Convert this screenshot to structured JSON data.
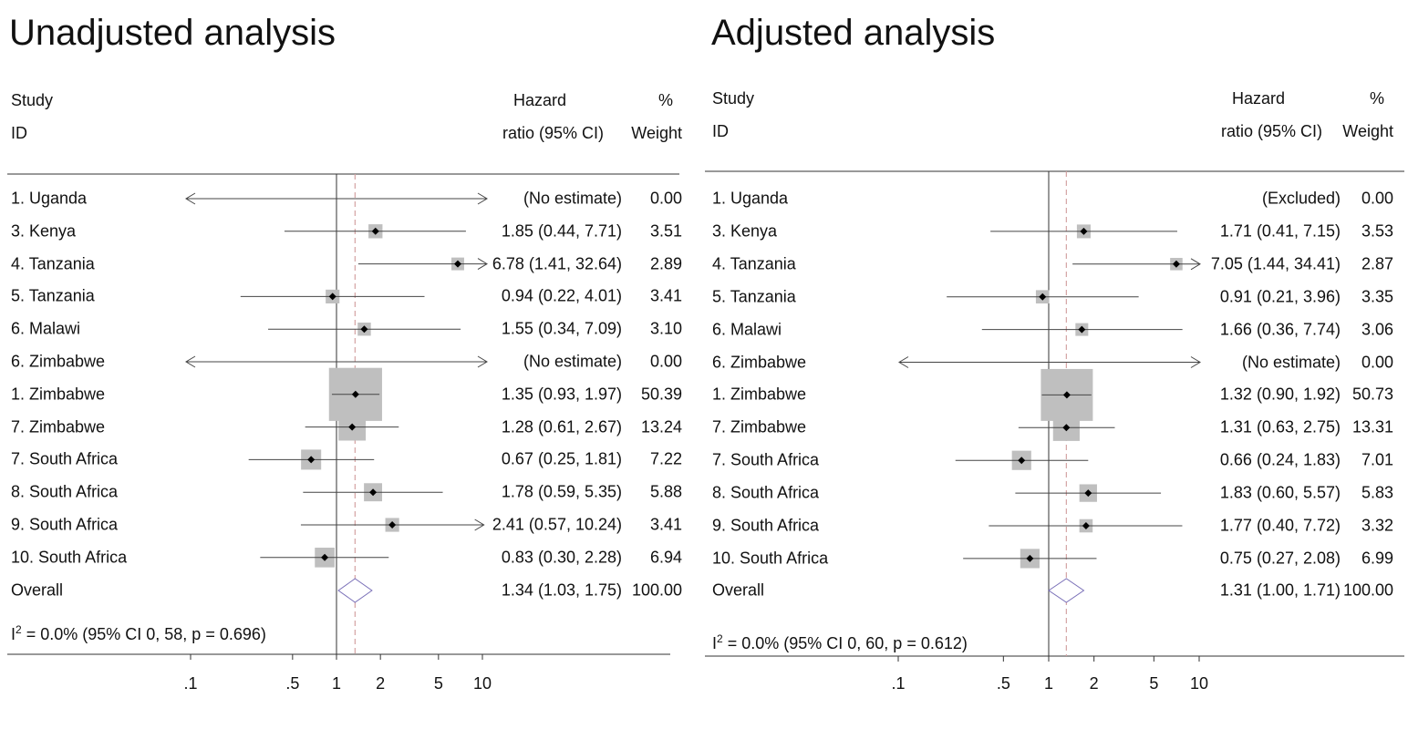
{
  "chart_data": [
    {
      "type": "forest",
      "title": "Unadjusted analysis",
      "x_scale": "log",
      "xticks": [
        ".1",
        ".5",
        "1",
        "2",
        "5",
        "10"
      ],
      "xtick_values": [
        0.1,
        0.5,
        1,
        2,
        5,
        10
      ],
      "null_line": 1,
      "overall_line": 1.34,
      "headers": {
        "study": "Study",
        "id": "ID",
        "hr_line1": "Hazard",
        "hr_line2": "ratio (95% CI)",
        "weight_line1": "%",
        "weight_line2": "Weight"
      },
      "rows": [
        {
          "label": "1. Uganda",
          "ci_text": "(No estimate)",
          "weight_text": "0.00",
          "hr": null,
          "lo": null,
          "hi": null,
          "weight": 0,
          "arrow_left": true,
          "arrow_right": true
        },
        {
          "label": "3. Kenya",
          "ci_text": "1.85 (0.44, 7.71)",
          "weight_text": "3.51",
          "hr": 1.85,
          "lo": 0.44,
          "hi": 7.71,
          "weight": 3.51
        },
        {
          "label": "4. Tanzania",
          "ci_text": "6.78 (1.41, 32.64)",
          "weight_text": "2.89",
          "hr": 6.78,
          "lo": 1.41,
          "hi": 32.64,
          "weight": 2.89,
          "arrow_right": true
        },
        {
          "label": "5. Tanzania",
          "ci_text": "0.94 (0.22, 4.01)",
          "weight_text": "3.41",
          "hr": 0.94,
          "lo": 0.22,
          "hi": 4.01,
          "weight": 3.41
        },
        {
          "label": "6. Malawi",
          "ci_text": "1.55 (0.34, 7.09)",
          "weight_text": "3.10",
          "hr": 1.55,
          "lo": 0.34,
          "hi": 7.09,
          "weight": 3.1
        },
        {
          "label": "6. Zimbabwe",
          "ci_text": "(No estimate)",
          "weight_text": "0.00",
          "hr": null,
          "lo": null,
          "hi": null,
          "weight": 0,
          "arrow_left": true,
          "arrow_right": true
        },
        {
          "label": "1. Zimbabwe",
          "ci_text": "1.35 (0.93, 1.97)",
          "weight_text": "50.39",
          "hr": 1.35,
          "lo": 0.93,
          "hi": 1.97,
          "weight": 50.39
        },
        {
          "label": "7. Zimbabwe",
          "ci_text": "1.28 (0.61, 2.67)",
          "weight_text": "13.24",
          "hr": 1.28,
          "lo": 0.61,
          "hi": 2.67,
          "weight": 13.24
        },
        {
          "label": "7. South Africa",
          "ci_text": "0.67 (0.25, 1.81)",
          "weight_text": "7.22",
          "hr": 0.67,
          "lo": 0.25,
          "hi": 1.81,
          "weight": 7.22
        },
        {
          "label": "8. South Africa",
          "ci_text": "1.78 (0.59, 5.35)",
          "weight_text": "5.88",
          "hr": 1.78,
          "lo": 0.59,
          "hi": 5.35,
          "weight": 5.88
        },
        {
          "label": "9. South Africa",
          "ci_text": "2.41 (0.57, 10.24)",
          "weight_text": "3.41",
          "hr": 2.41,
          "lo": 0.57,
          "hi": 10.24,
          "weight": 3.41,
          "arrow_right": true
        },
        {
          "label": "10. South Africa",
          "ci_text": "0.83 (0.30, 2.28)",
          "weight_text": "6.94",
          "hr": 0.83,
          "lo": 0.3,
          "hi": 2.28,
          "weight": 6.94
        }
      ],
      "overall": {
        "label": "Overall",
        "ci_text": "1.34 (1.03, 1.75)",
        "weight_text": "100.00",
        "hr": 1.34,
        "lo": 1.03,
        "hi": 1.75
      },
      "heterogeneity": {
        "prefix": "I",
        "sup": "2",
        "text": " = 0.0% (95% CI 0, 58, p = 0.696)"
      }
    },
    {
      "type": "forest",
      "title": "Adjusted analysis",
      "x_scale": "log",
      "xticks": [
        ".1",
        ".5",
        "1",
        "2",
        "5",
        "10"
      ],
      "xtick_values": [
        0.1,
        0.5,
        1,
        2,
        5,
        10
      ],
      "null_line": 1,
      "overall_line": 1.31,
      "headers": {
        "study": "Study",
        "id": "ID",
        "hr_line1": "Hazard",
        "hr_line2": "ratio (95% CI)",
        "weight_line1": "%",
        "weight_line2": "Weight"
      },
      "rows": [
        {
          "label": "1. Uganda",
          "ci_text": "(Excluded)",
          "weight_text": "0.00",
          "hr": null,
          "lo": null,
          "hi": null,
          "weight": 0
        },
        {
          "label": "3. Kenya",
          "ci_text": "1.71 (0.41, 7.15)",
          "weight_text": "3.53",
          "hr": 1.71,
          "lo": 0.41,
          "hi": 7.15,
          "weight": 3.53
        },
        {
          "label": "4. Tanzania",
          "ci_text": "7.05 (1.44, 34.41)",
          "weight_text": "2.87",
          "hr": 7.05,
          "lo": 1.44,
          "hi": 34.41,
          "weight": 2.87,
          "arrow_right": true
        },
        {
          "label": "5. Tanzania",
          "ci_text": "0.91 (0.21, 3.96)",
          "weight_text": "3.35",
          "hr": 0.91,
          "lo": 0.21,
          "hi": 3.96,
          "weight": 3.35
        },
        {
          "label": "6. Malawi",
          "ci_text": "1.66 (0.36, 7.74)",
          "weight_text": "3.06",
          "hr": 1.66,
          "lo": 0.36,
          "hi": 7.74,
          "weight": 3.06
        },
        {
          "label": "6. Zimbabwe",
          "ci_text": "(No estimate)",
          "weight_text": "0.00",
          "hr": null,
          "lo": null,
          "hi": null,
          "weight": 0,
          "arrow_left": true,
          "arrow_right": true
        },
        {
          "label": "1. Zimbabwe",
          "ci_text": "1.32 (0.90, 1.92)",
          "weight_text": "50.73",
          "hr": 1.32,
          "lo": 0.9,
          "hi": 1.92,
          "weight": 50.73
        },
        {
          "label": "7. Zimbabwe",
          "ci_text": "1.31 (0.63, 2.75)",
          "weight_text": "13.31",
          "hr": 1.31,
          "lo": 0.63,
          "hi": 2.75,
          "weight": 13.31
        },
        {
          "label": "7. South Africa",
          "ci_text": "0.66 (0.24, 1.83)",
          "weight_text": "7.01",
          "hr": 0.66,
          "lo": 0.24,
          "hi": 1.83,
          "weight": 7.01
        },
        {
          "label": "8. South Africa",
          "ci_text": "1.83 (0.60, 5.57)",
          "weight_text": "5.83",
          "hr": 1.83,
          "lo": 0.6,
          "hi": 5.57,
          "weight": 5.83
        },
        {
          "label": "9. South Africa",
          "ci_text": "1.77 (0.40, 7.72)",
          "weight_text": "3.32",
          "hr": 1.77,
          "lo": 0.4,
          "hi": 7.72,
          "weight": 3.32
        },
        {
          "label": "10. South Africa",
          "ci_text": "0.75 (0.27, 2.08)",
          "weight_text": "6.99",
          "hr": 0.75,
          "lo": 0.27,
          "hi": 2.08,
          "weight": 6.99
        }
      ],
      "overall": {
        "label": "Overall",
        "ci_text": "1.31 (1.00, 1.71)",
        "weight_text": "100.00",
        "hr": 1.31,
        "lo": 1.0,
        "hi": 1.71
      },
      "heterogeneity": {
        "prefix": "I",
        "sup": "2",
        "text": " = 0.0% (95% CI 0, 60, p = 0.612)"
      }
    }
  ],
  "colors": {
    "box": "#bfbfbf",
    "axis": "#333333",
    "ci_line": "#444444",
    "overall_line": "#d4a3a3",
    "diamond": "#7a70b8",
    "point": "#000000"
  }
}
